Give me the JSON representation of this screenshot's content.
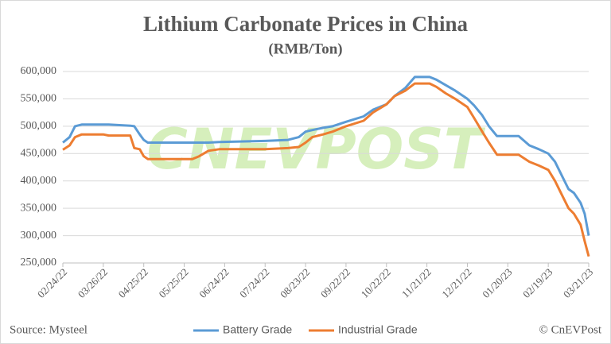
{
  "chart_data": {
    "type": "line",
    "title": "Lithium Carbonate Prices in China",
    "subtitle": "(RMB/Ton)",
    "source": "Source: Mysteel",
    "credit": "© CnEVPost",
    "watermark": "CNEVPOST",
    "x": [
      "2022-02-24",
      "2022-03-01",
      "2022-03-05",
      "2022-03-10",
      "2022-03-26",
      "2022-03-30",
      "2022-04-15",
      "2022-04-18",
      "2022-04-22",
      "2022-04-25",
      "2022-04-28",
      "2022-05-31",
      "2022-06-05",
      "2022-06-12",
      "2022-06-20",
      "2022-07-24",
      "2022-08-10",
      "2022-08-18",
      "2022-08-23",
      "2022-08-28",
      "2022-09-05",
      "2022-09-12",
      "2022-09-22",
      "2022-10-05",
      "2022-10-12",
      "2022-10-22",
      "2022-10-28",
      "2022-11-05",
      "2022-11-12",
      "2022-11-23",
      "2022-11-28",
      "2022-12-05",
      "2022-12-12",
      "2022-12-21",
      "2022-12-26",
      "2023-01-01",
      "2023-01-06",
      "2023-01-12",
      "2023-01-28",
      "2023-02-05",
      "2023-02-12",
      "2023-02-19",
      "2023-02-24",
      "2023-03-01",
      "2023-03-06",
      "2023-03-10",
      "2023-03-15",
      "2023-03-18",
      "2023-03-21"
    ],
    "series": [
      {
        "name": "Battery Grade",
        "color": "#5b9bd5",
        "values": [
          470000,
          480000,
          500000,
          503000,
          503000,
          503000,
          501000,
          500000,
          485000,
          475000,
          470000,
          470000,
          470000,
          470000,
          471000,
          473000,
          475000,
          480000,
          490000,
          493000,
          497000,
          500000,
          508000,
          518000,
          530000,
          540000,
          555000,
          570000,
          590000,
          590000,
          585000,
          575000,
          565000,
          550000,
          538000,
          520000,
          500000,
          482000,
          482000,
          465000,
          458000,
          450000,
          435000,
          410000,
          385000,
          378000,
          360000,
          340000,
          300000
        ]
      },
      {
        "name": "Industrial Grade",
        "color": "#ed7d31",
        "values": [
          457000,
          465000,
          480000,
          485000,
          485000,
          483000,
          483000,
          460000,
          458000,
          445000,
          440000,
          440000,
          445000,
          455000,
          458000,
          458000,
          460000,
          462000,
          470000,
          480000,
          485000,
          490000,
          500000,
          510000,
          525000,
          540000,
          555000,
          565000,
          578000,
          578000,
          572000,
          560000,
          550000,
          535000,
          515000,
          490000,
          470000,
          448000,
          448000,
          435000,
          428000,
          420000,
          400000,
          375000,
          350000,
          340000,
          320000,
          290000,
          262000
        ]
      }
    ],
    "xlim": [
      "2022-02-24",
      "2023-03-21"
    ],
    "xticks": [
      {
        "value": "2022-02-24",
        "label": "02/24/22"
      },
      {
        "value": "2022-03-26",
        "label": "03/26/22"
      },
      {
        "value": "2022-04-25",
        "label": "04/25/22"
      },
      {
        "value": "2022-05-25",
        "label": "05/25/22"
      },
      {
        "value": "2022-06-24",
        "label": "06/24/22"
      },
      {
        "value": "2022-07-24",
        "label": "07/24/22"
      },
      {
        "value": "2022-08-23",
        "label": "08/23/22"
      },
      {
        "value": "2022-09-22",
        "label": "09/22/22"
      },
      {
        "value": "2022-10-22",
        "label": "10/22/22"
      },
      {
        "value": "2022-11-21",
        "label": "11/21/22"
      },
      {
        "value": "2022-12-21",
        "label": "12/21/22"
      },
      {
        "value": "2023-01-20",
        "label": "01/20/23"
      },
      {
        "value": "2023-02-19",
        "label": "02/19/23"
      },
      {
        "value": "2023-03-21",
        "label": "03/21/23"
      }
    ],
    "ylim": [
      250000,
      600000
    ],
    "yticks": [
      {
        "value": 250000,
        "label": "250,000"
      },
      {
        "value": 300000,
        "label": "300,000"
      },
      {
        "value": 350000,
        "label": "350,000"
      },
      {
        "value": 400000,
        "label": "400,000"
      },
      {
        "value": 450000,
        "label": "450,000"
      },
      {
        "value": 500000,
        "label": "500,000"
      },
      {
        "value": 550000,
        "label": "550,000"
      },
      {
        "value": 600000,
        "label": "600,000"
      }
    ],
    "grid": true
  }
}
